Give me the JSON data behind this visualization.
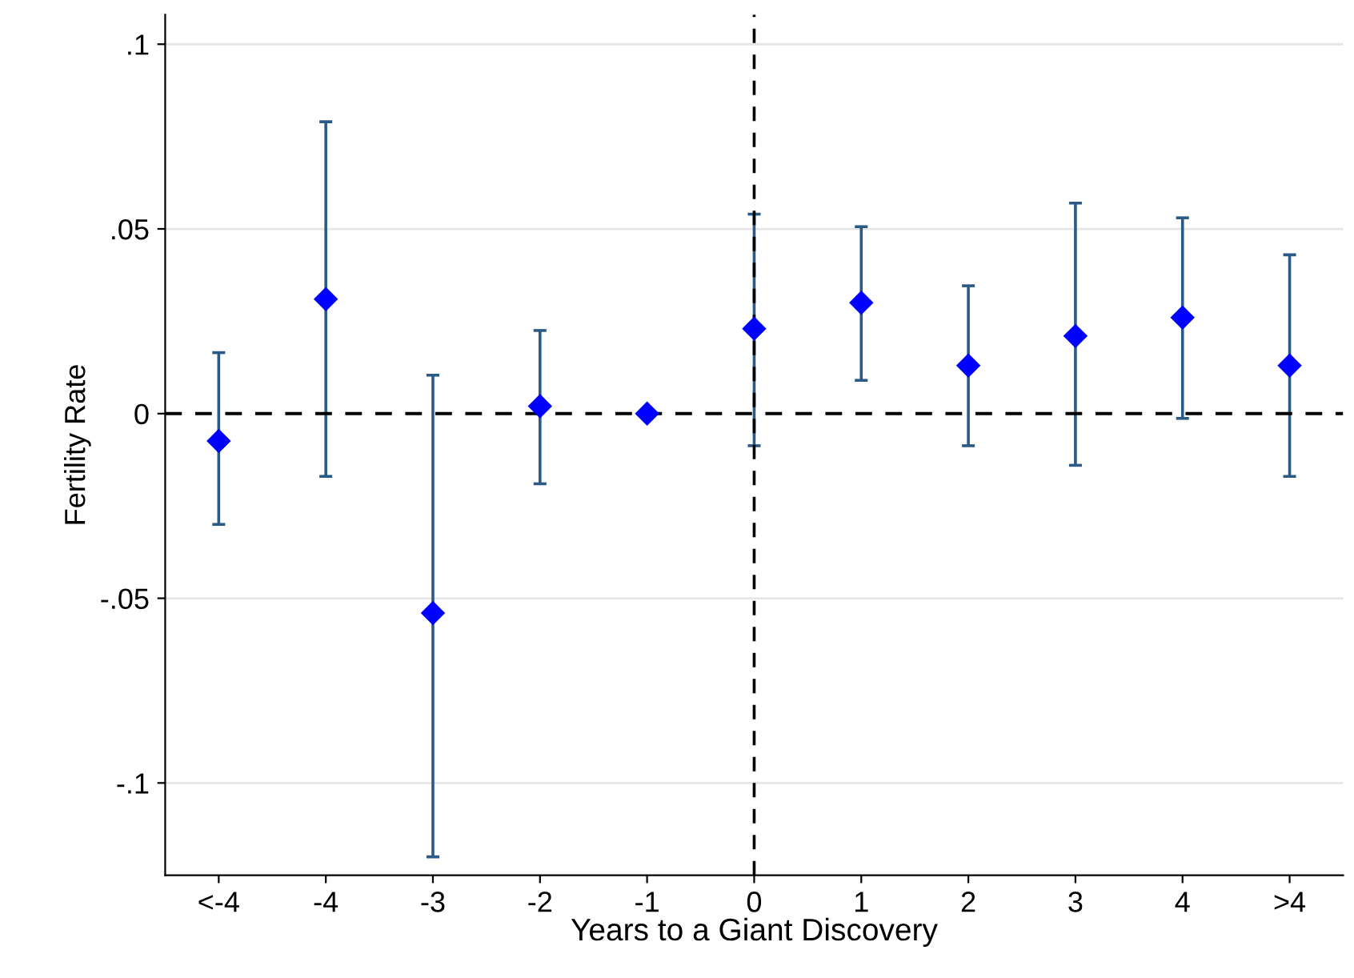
{
  "chart_data": {
    "type": "scatter",
    "xlabel": "Years to a Giant Discovery",
    "ylabel": "Fertility Rate",
    "categories": [
      "<-4",
      "-4",
      "-3",
      "-2",
      "-1",
      "0",
      "1",
      "2",
      "3",
      "4",
      ">4"
    ],
    "values": [
      -0.0074,
      0.031,
      -0.054,
      0.002,
      0,
      0.023,
      0.03,
      0.013,
      0.021,
      0.026,
      0.013
    ],
    "errors": [
      [
        -0.03,
        0.0165
      ],
      [
        -0.017,
        0.079
      ],
      [
        -0.12,
        0.0104
      ],
      [
        -0.019,
        0.0225
      ],
      null,
      [
        -0.0087,
        0.054
      ],
      [
        0.009,
        0.0506
      ],
      [
        -0.0087,
        0.0346
      ],
      [
        -0.014,
        0.057
      ],
      [
        -0.0013,
        0.053
      ],
      [
        -0.017,
        0.043
      ]
    ],
    "color": "#0000ff",
    "marker": "diamond",
    "ylim": [
      -0.125,
      0.108
    ],
    "yticks": [
      {
        "value": -0.1,
        "label": "-.1"
      },
      {
        "value": -0.05,
        "label": "-.05"
      },
      0,
      {
        "value": 0.05,
        "label": ".05"
      },
      {
        "value": 0.1,
        "label": ".1"
      }
    ],
    "grid": "y",
    "ref_lines": [
      {
        "axis": "y",
        "value": 0,
        "line_style": "dashed",
        "color": "#000000"
      },
      {
        "axis": "x",
        "value": "0",
        "line_style": "dashed",
        "color": "#000000"
      }
    ]
  }
}
